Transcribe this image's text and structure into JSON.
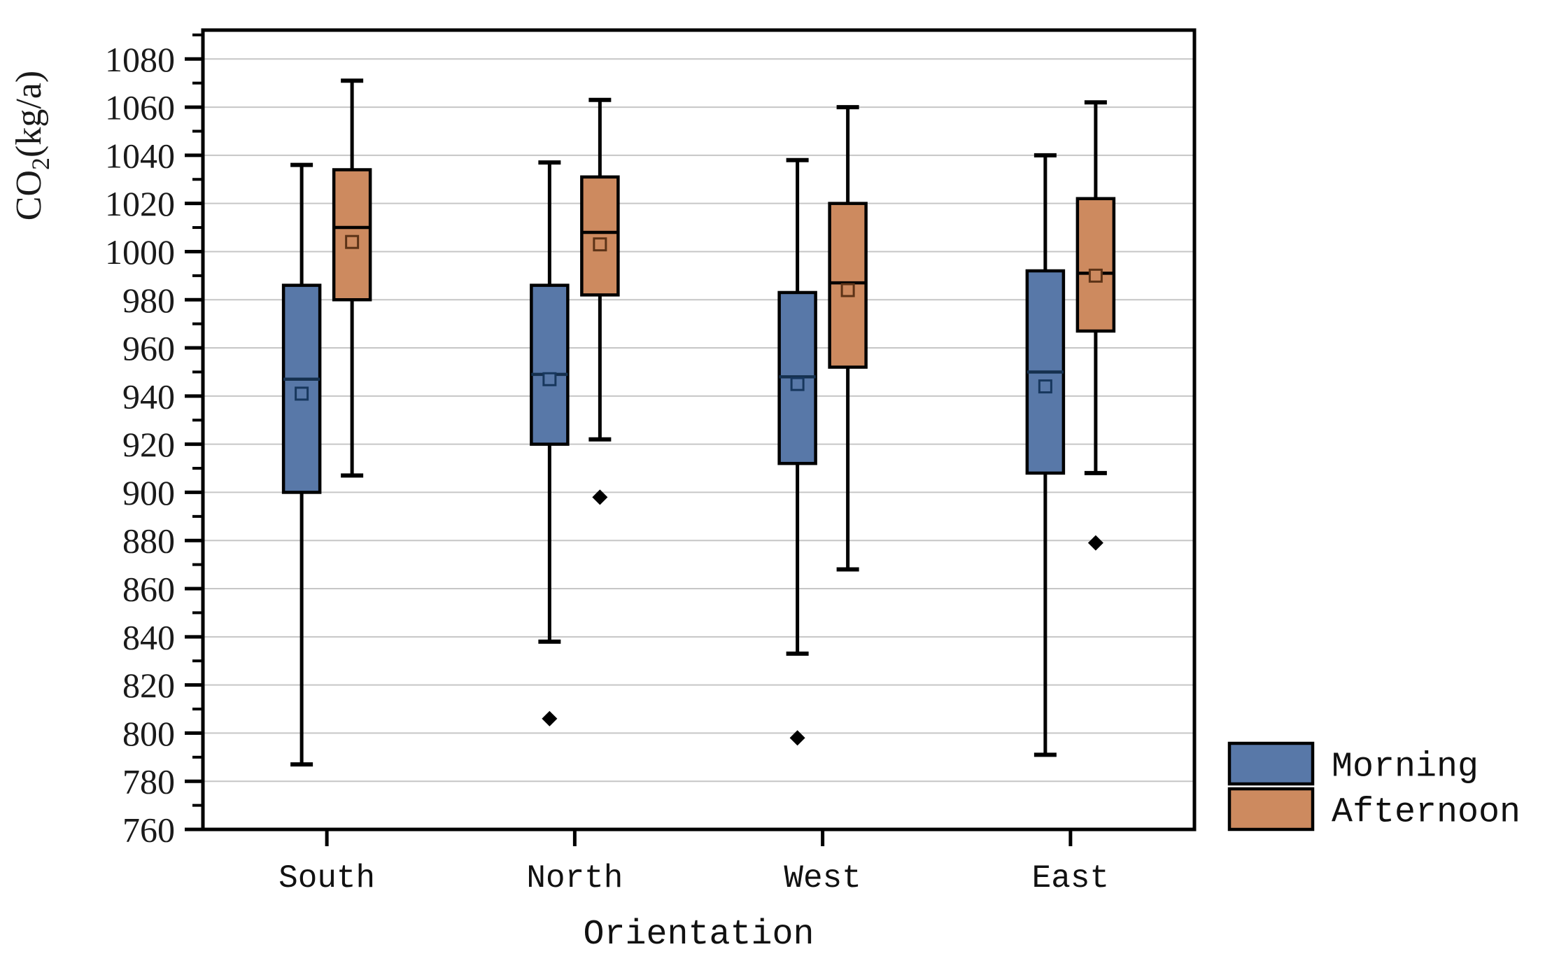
{
  "page": {
    "background": "#ffffff"
  },
  "chart_data": {
    "type": "boxplot",
    "title": "",
    "xlabel": "Orientation",
    "ylabel": "CO2(kg/a)",
    "ylabel_parts": {
      "pre": "CO",
      "sub": "2",
      "post": "(kg/a)"
    },
    "categories": [
      "South",
      "North",
      "West",
      "East"
    ],
    "ylim": [
      760,
      1092
    ],
    "y_ticks": [
      760,
      780,
      800,
      820,
      840,
      860,
      880,
      900,
      920,
      940,
      960,
      980,
      1000,
      1020,
      1040,
      1060,
      1080
    ],
    "y_minor_step": 10,
    "grid": {
      "horizontal_major": true,
      "color": "#c6c6c6"
    },
    "axis_color": "#000000",
    "legend": {
      "position": "outside-bottom-right",
      "entries": [
        {
          "label": "Morning",
          "color": "#5878a8"
        },
        {
          "label": "Afternoon",
          "color": "#cd8a5f"
        }
      ]
    },
    "marker_notes": {
      "mean": "small open square",
      "outlier": "filled black diamond"
    },
    "series": [
      {
        "name": "Morning",
        "fill": "#5878a8",
        "median_color": "#15304e",
        "mean_edge_color": "#17375d",
        "boxes": [
          {
            "category": "South",
            "whisker_low": 787,
            "q1": 900,
            "median": 947,
            "mean": 941,
            "q3": 986,
            "whisker_high": 1036,
            "outliers": []
          },
          {
            "category": "North",
            "whisker_low": 838,
            "q1": 920,
            "median": 949,
            "mean": 947,
            "q3": 986,
            "whisker_high": 1037,
            "outliers": [
              806
            ]
          },
          {
            "category": "West",
            "whisker_low": 833,
            "q1": 912,
            "median": 948,
            "mean": 945,
            "q3": 983,
            "whisker_high": 1038,
            "outliers": [
              798
            ]
          },
          {
            "category": "East",
            "whisker_low": 791,
            "q1": 908,
            "median": 950,
            "mean": 944,
            "q3": 992,
            "whisker_high": 1040,
            "outliers": []
          }
        ]
      },
      {
        "name": "Afternoon",
        "fill": "#cd8a5f",
        "median_color": "#000000",
        "mean_edge_color": "#5c3317",
        "boxes": [
          {
            "category": "South",
            "whisker_low": 907,
            "q1": 980,
            "median": 1010,
            "mean": 1004,
            "q3": 1034,
            "whisker_high": 1071,
            "outliers": []
          },
          {
            "category": "North",
            "whisker_low": 922,
            "q1": 982,
            "median": 1008,
            "mean": 1003,
            "q3": 1031,
            "whisker_high": 1063,
            "outliers": [
              898
            ]
          },
          {
            "category": "West",
            "whisker_low": 868,
            "q1": 952,
            "median": 987,
            "mean": 984,
            "q3": 1020,
            "whisker_high": 1060,
            "outliers": []
          },
          {
            "category": "East",
            "whisker_low": 908,
            "q1": 967,
            "median": 991,
            "mean": 990,
            "q3": 1022,
            "whisker_high": 1062,
            "outliers": [
              879
            ]
          }
        ]
      }
    ]
  }
}
